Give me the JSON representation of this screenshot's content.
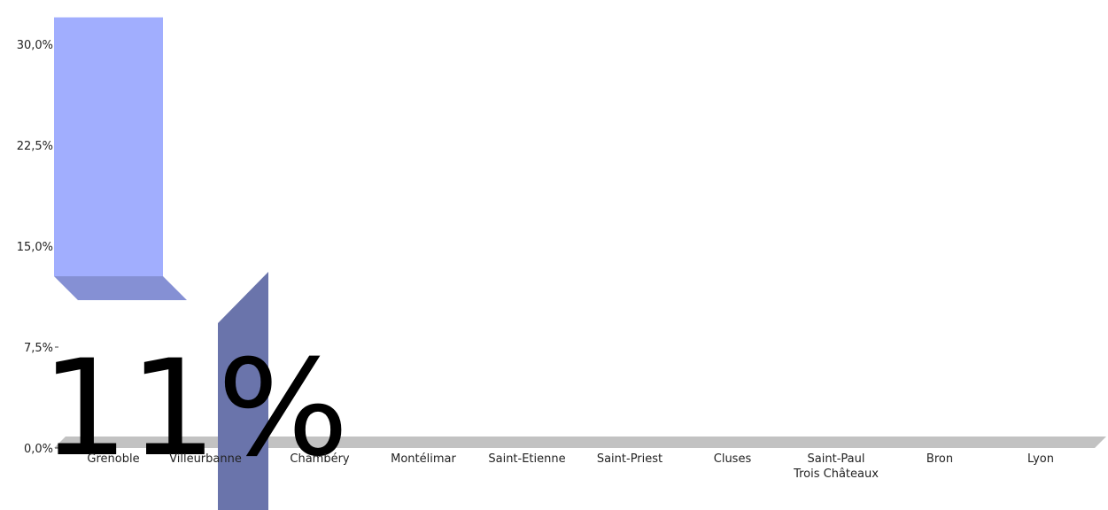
{
  "colors": {
    "bar_front": "#a1aefe",
    "bar_shade": "#8590d4",
    "dark_bar": "#6a74ab",
    "floor": "#c2c2c2",
    "overlay_text": "#000000"
  },
  "chart_data": {
    "type": "bar",
    "title": "",
    "xlabel": "",
    "ylabel": "",
    "ylim": [
      0,
      30
    ],
    "y_ticks": [
      "0,0%",
      "7,5%",
      "15,0%",
      "22,5%",
      "30,0%"
    ],
    "grid": false,
    "categories": [
      "Grenoble",
      "Villeurbanne",
      "Chambéry",
      "Montélimar",
      "Saint-Etienne",
      "Saint-Priest",
      "Cluses",
      "Saint-Paul Trois Châteaux",
      "Bron",
      "Lyon"
    ],
    "visible_category_labels": [
      [
        "Grenoble"
      ],
      [
        "Villeurbanne"
      ],
      [
        "Chambéry"
      ],
      [
        "Montélimar"
      ],
      [
        "Saint-Etienne"
      ],
      [
        "Saint-Priest"
      ],
      [
        "Cluses"
      ],
      [
        "Saint-Paul",
        "Trois Châteaux"
      ],
      [
        "Bron"
      ],
      [
        "Lyon"
      ]
    ],
    "series": [
      {
        "values": [
          32.0,
          null,
          null,
          null,
          null,
          null,
          null,
          null,
          null,
          null
        ]
      }
    ],
    "overlay_value_text": "11%"
  }
}
